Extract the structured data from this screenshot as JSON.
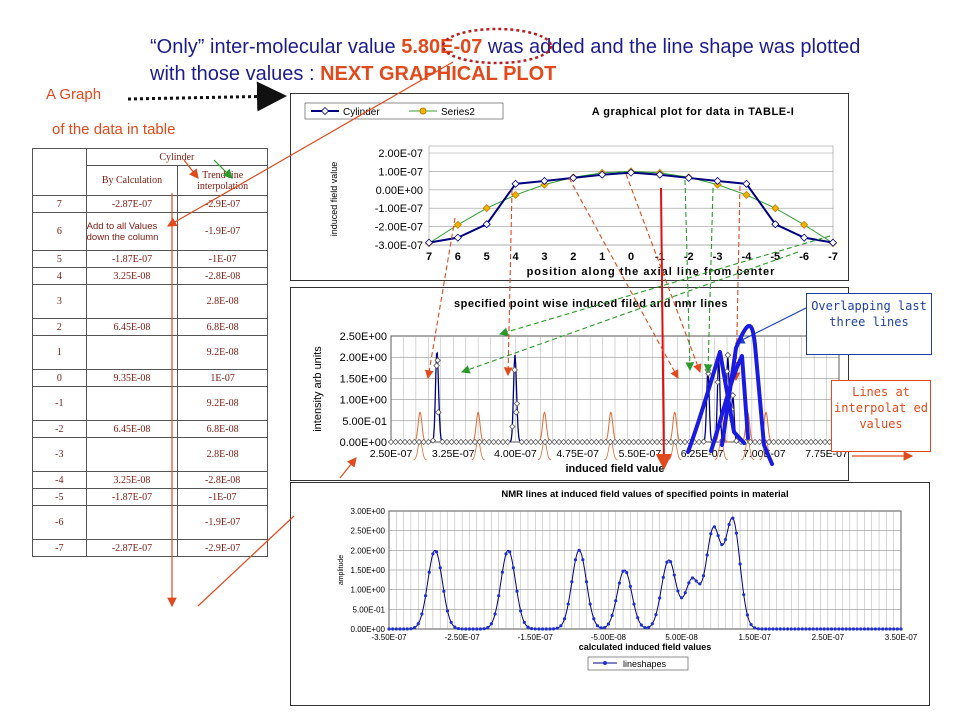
{
  "header": {
    "title_part1": "“Only” inter-molecular value ",
    "title_highlight": "5.80E-07",
    "title_part2": " was added and the line shape was plotted with those values : ",
    "title_next": "NEXT GRAPHICAL PLOT",
    "graph_label": "A Graph",
    "graph_label2": "of the data in table"
  },
  "table": {
    "group_header": "Cylinder",
    "col1_header": "By Calculation",
    "col2_header": "Trend line interpolation",
    "note": "Add to all Values down the column",
    "rows": [
      {
        "pos": "7",
        "calc": "-2.87E-07",
        "trend": "-2.9E-07"
      },
      {
        "pos": "6",
        "calc": "",
        "trend": "-1.9E-07"
      },
      {
        "pos": "5",
        "calc": "-1.87E-07",
        "trend": "-1E-07"
      },
      {
        "pos": "4",
        "calc": "3.25E-08",
        "trend": "-2.8E-08"
      },
      {
        "pos": "3",
        "calc": "",
        "trend": "2.8E-08"
      },
      {
        "pos": "2",
        "calc": "6.45E-08",
        "trend": "6.8E-08"
      },
      {
        "pos": "1",
        "calc": "",
        "trend": "9.2E-08"
      },
      {
        "pos": "0",
        "calc": "9.35E-08",
        "trend": "1E-07"
      },
      {
        "pos": "-1",
        "calc": "",
        "trend": "9.2E-08"
      },
      {
        "pos": "-2",
        "calc": "6.45E-08",
        "trend": "6.8E-08"
      },
      {
        "pos": "-3",
        "calc": "",
        "trend": "2.8E-08"
      },
      {
        "pos": "-4",
        "calc": "3.25E-08",
        "trend": "-2.8E-08"
      },
      {
        "pos": "-5",
        "calc": "-1.87E-07",
        "trend": "-1E-07"
      },
      {
        "pos": "-6",
        "calc": "",
        "trend": "-1.9E-07"
      },
      {
        "pos": "-7",
        "calc": "-2.87E-07",
        "trend": "-2.9E-07"
      }
    ]
  },
  "callouts": {
    "overlap": "Overlapping last three lines",
    "interp": "Lines at interpolat ed values"
  },
  "colors": {
    "title": "#1c1c8c",
    "accent": "#e04a1c",
    "navy": "#000080",
    "series2": "#f0b400",
    "peaks": "#e26a32",
    "marker": "#2030d0",
    "bigline": "#1a1ae0"
  },
  "chart_data": [
    {
      "type": "line",
      "title": "A graphical plot for data in TABLE-I",
      "xlabel": "position along the axial line from center",
      "ylabel": "induced field value",
      "categories": [
        "7",
        "6",
        "5",
        "4",
        "3",
        "2",
        "1",
        "0",
        "-1",
        "-2",
        "-3",
        "-4",
        "-5",
        "-6",
        "-7"
      ],
      "y_ticks": [
        "-3.00E-07",
        "-2.00E-07",
        "-1.00E-07",
        "0.00E+00",
        "1.00E-07",
        "2.00E-07"
      ],
      "ylim": [
        -3e-07,
        2e-07
      ],
      "series": [
        {
          "name": "Cylinder",
          "values": [
            -2.87e-07,
            -2.6e-07,
            -1.87e-07,
            3.25e-08,
            4.8e-08,
            6.45e-08,
            8.2e-08,
            9.35e-08,
            8.2e-08,
            6.45e-08,
            4.8e-08,
            3.25e-08,
            -1.87e-07,
            -2.6e-07,
            -2.87e-07
          ]
        },
        {
          "name": "Series2",
          "values": [
            -2.9e-07,
            -1.9e-07,
            -1e-07,
            -2.8e-08,
            2.8e-08,
            6.8e-08,
            9.2e-08,
            1e-07,
            9.2e-08,
            6.8e-08,
            2.8e-08,
            -2.8e-08,
            -1e-07,
            -1.9e-07,
            -2.9e-07
          ]
        }
      ],
      "legend": "top"
    },
    {
      "type": "line",
      "title": "specified point wise induced filed and nmr lines",
      "xlabel": "induced field value",
      "ylabel": "intensity arb units",
      "x_ticks": [
        "2.50E-07",
        "3.25E-07",
        "4.00E-07",
        "4.75E-07",
        "5.50E-07",
        "6.25E-07",
        "7.00E-07",
        "7.75E-07"
      ],
      "y_ticks": [
        "0.00E+00",
        "5.00E-01",
        "1.00E+00",
        "1.50E+00",
        "2.00E+00",
        "2.50E+00"
      ],
      "xlim": [
        2.5e-07,
        7.9e-07
      ],
      "ylim": [
        0,
        2.5
      ],
      "lines": [
        {
          "center": 3.05e-07,
          "height": 1.8
        },
        {
          "center": 3.07e-07,
          "height": 0.7
        },
        {
          "center": 3.99e-07,
          "height": 1.7
        },
        {
          "center": 4.01e-07,
          "height": 0.7
        },
        {
          "center": 6.32e-07,
          "height": 1.7
        },
        {
          "center": 6.45e-07,
          "height": 1.95
        },
        {
          "center": 6.56e-07,
          "height": 2.05
        },
        {
          "center": 6.62e-07,
          "height": 1.1
        }
      ],
      "interp_lines": [
        2.85e-07,
        3.55e-07,
        4.35e-07,
        5.15e-07,
        5.92e-07,
        6.48e-07,
        6.8e-07,
        7.02e-07
      ]
    },
    {
      "type": "line",
      "title": "NMR lines at induced field values of specified points in material",
      "xlabel": "calculated induced field values",
      "ylabel": "amplitude",
      "x_ticks": [
        "-3.50E-07",
        "-2.50E-07",
        "-1.50E-07",
        "-5.00E-08",
        "5.00E-08",
        "1.50E-07",
        "2.50E-07",
        "3.50E-07"
      ],
      "y_ticks": [
        "0.00E+00",
        "5.00E-01",
        "1.00E+00",
        "1.50E+00",
        "2.00E+00",
        "2.50E+00",
        "3.00E+00"
      ],
      "xlim": [
        -3.5e-07,
        3.5e-07
      ],
      "ylim": [
        0,
        3
      ],
      "peaks": [
        {
          "center": -2.87e-07,
          "height": 2.0
        },
        {
          "center": -1.87e-07,
          "height": 2.0
        },
        {
          "center": -9e-08,
          "height": 2.0
        },
        {
          "center": -2.8e-08,
          "height": 1.5
        },
        {
          "center": 3.25e-08,
          "height": 1.75
        },
        {
          "center": 6.45e-08,
          "height": 1.25
        },
        {
          "center": 9.35e-08,
          "height": 2.5
        },
        {
          "center": 1.2e-07,
          "height": 2.75
        }
      ],
      "series": [
        {
          "name": "lineshapes"
        }
      ],
      "legend": "bottom"
    }
  ]
}
